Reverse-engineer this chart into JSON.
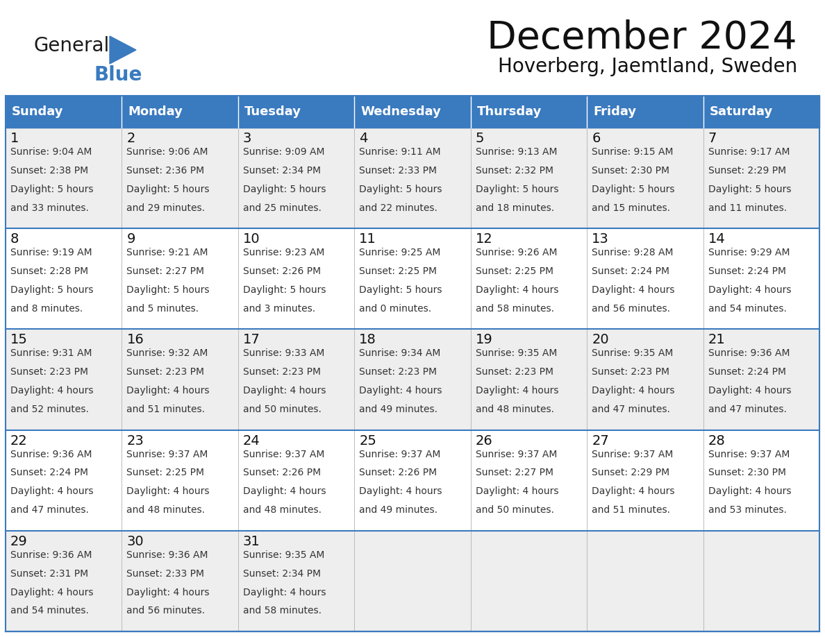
{
  "title": "December 2024",
  "subtitle": "Hoverberg, Jaemtland, Sweden",
  "header_color": "#3a7abf",
  "header_text_color": "#ffffff",
  "row_bg_even": "#eeeeee",
  "row_bg_odd": "#ffffff",
  "border_color": "#3a7abf",
  "cell_line_color": "#aaaaaa",
  "day_names": [
    "Sunday",
    "Monday",
    "Tuesday",
    "Wednesday",
    "Thursday",
    "Friday",
    "Saturday"
  ],
  "weeks": [
    [
      {
        "day": 1,
        "sunrise": "9:04 AM",
        "sunset": "2:38 PM",
        "daylight_h": "5 hours",
        "daylight_m": "and 33 minutes."
      },
      {
        "day": 2,
        "sunrise": "9:06 AM",
        "sunset": "2:36 PM",
        "daylight_h": "5 hours",
        "daylight_m": "and 29 minutes."
      },
      {
        "day": 3,
        "sunrise": "9:09 AM",
        "sunset": "2:34 PM",
        "daylight_h": "5 hours",
        "daylight_m": "and 25 minutes."
      },
      {
        "day": 4,
        "sunrise": "9:11 AM",
        "sunset": "2:33 PM",
        "daylight_h": "5 hours",
        "daylight_m": "and 22 minutes."
      },
      {
        "day": 5,
        "sunrise": "9:13 AM",
        "sunset": "2:32 PM",
        "daylight_h": "5 hours",
        "daylight_m": "and 18 minutes."
      },
      {
        "day": 6,
        "sunrise": "9:15 AM",
        "sunset": "2:30 PM",
        "daylight_h": "5 hours",
        "daylight_m": "and 15 minutes."
      },
      {
        "day": 7,
        "sunrise": "9:17 AM",
        "sunset": "2:29 PM",
        "daylight_h": "5 hours",
        "daylight_m": "and 11 minutes."
      }
    ],
    [
      {
        "day": 8,
        "sunrise": "9:19 AM",
        "sunset": "2:28 PM",
        "daylight_h": "5 hours",
        "daylight_m": "and 8 minutes."
      },
      {
        "day": 9,
        "sunrise": "9:21 AM",
        "sunset": "2:27 PM",
        "daylight_h": "5 hours",
        "daylight_m": "and 5 minutes."
      },
      {
        "day": 10,
        "sunrise": "9:23 AM",
        "sunset": "2:26 PM",
        "daylight_h": "5 hours",
        "daylight_m": "and 3 minutes."
      },
      {
        "day": 11,
        "sunrise": "9:25 AM",
        "sunset": "2:25 PM",
        "daylight_h": "5 hours",
        "daylight_m": "and 0 minutes."
      },
      {
        "day": 12,
        "sunrise": "9:26 AM",
        "sunset": "2:25 PM",
        "daylight_h": "4 hours",
        "daylight_m": "and 58 minutes."
      },
      {
        "day": 13,
        "sunrise": "9:28 AM",
        "sunset": "2:24 PM",
        "daylight_h": "4 hours",
        "daylight_m": "and 56 minutes."
      },
      {
        "day": 14,
        "sunrise": "9:29 AM",
        "sunset": "2:24 PM",
        "daylight_h": "4 hours",
        "daylight_m": "and 54 minutes."
      }
    ],
    [
      {
        "day": 15,
        "sunrise": "9:31 AM",
        "sunset": "2:23 PM",
        "daylight_h": "4 hours",
        "daylight_m": "and 52 minutes."
      },
      {
        "day": 16,
        "sunrise": "9:32 AM",
        "sunset": "2:23 PM",
        "daylight_h": "4 hours",
        "daylight_m": "and 51 minutes."
      },
      {
        "day": 17,
        "sunrise": "9:33 AM",
        "sunset": "2:23 PM",
        "daylight_h": "4 hours",
        "daylight_m": "and 50 minutes."
      },
      {
        "day": 18,
        "sunrise": "9:34 AM",
        "sunset": "2:23 PM",
        "daylight_h": "4 hours",
        "daylight_m": "and 49 minutes."
      },
      {
        "day": 19,
        "sunrise": "9:35 AM",
        "sunset": "2:23 PM",
        "daylight_h": "4 hours",
        "daylight_m": "and 48 minutes."
      },
      {
        "day": 20,
        "sunrise": "9:35 AM",
        "sunset": "2:23 PM",
        "daylight_h": "4 hours",
        "daylight_m": "and 47 minutes."
      },
      {
        "day": 21,
        "sunrise": "9:36 AM",
        "sunset": "2:24 PM",
        "daylight_h": "4 hours",
        "daylight_m": "and 47 minutes."
      }
    ],
    [
      {
        "day": 22,
        "sunrise": "9:36 AM",
        "sunset": "2:24 PM",
        "daylight_h": "4 hours",
        "daylight_m": "and 47 minutes."
      },
      {
        "day": 23,
        "sunrise": "9:37 AM",
        "sunset": "2:25 PM",
        "daylight_h": "4 hours",
        "daylight_m": "and 48 minutes."
      },
      {
        "day": 24,
        "sunrise": "9:37 AM",
        "sunset": "2:26 PM",
        "daylight_h": "4 hours",
        "daylight_m": "and 48 minutes."
      },
      {
        "day": 25,
        "sunrise": "9:37 AM",
        "sunset": "2:26 PM",
        "daylight_h": "4 hours",
        "daylight_m": "and 49 minutes."
      },
      {
        "day": 26,
        "sunrise": "9:37 AM",
        "sunset": "2:27 PM",
        "daylight_h": "4 hours",
        "daylight_m": "and 50 minutes."
      },
      {
        "day": 27,
        "sunrise": "9:37 AM",
        "sunset": "2:29 PM",
        "daylight_h": "4 hours",
        "daylight_m": "and 51 minutes."
      },
      {
        "day": 28,
        "sunrise": "9:37 AM",
        "sunset": "2:30 PM",
        "daylight_h": "4 hours",
        "daylight_m": "and 53 minutes."
      }
    ],
    [
      {
        "day": 29,
        "sunrise": "9:36 AM",
        "sunset": "2:31 PM",
        "daylight_h": "4 hours",
        "daylight_m": "and 54 minutes."
      },
      {
        "day": 30,
        "sunrise": "9:36 AM",
        "sunset": "2:33 PM",
        "daylight_h": "4 hours",
        "daylight_m": "and 56 minutes."
      },
      {
        "day": 31,
        "sunrise": "9:35 AM",
        "sunset": "2:34 PM",
        "daylight_h": "4 hours",
        "daylight_m": "and 58 minutes."
      },
      null,
      null,
      null,
      null
    ]
  ],
  "title_fontsize": 40,
  "subtitle_fontsize": 20,
  "dayname_fontsize": 13,
  "daynumber_fontsize": 14,
  "cell_text_fontsize": 10,
  "logo_general_fontsize": 20,
  "logo_blue_fontsize": 20
}
